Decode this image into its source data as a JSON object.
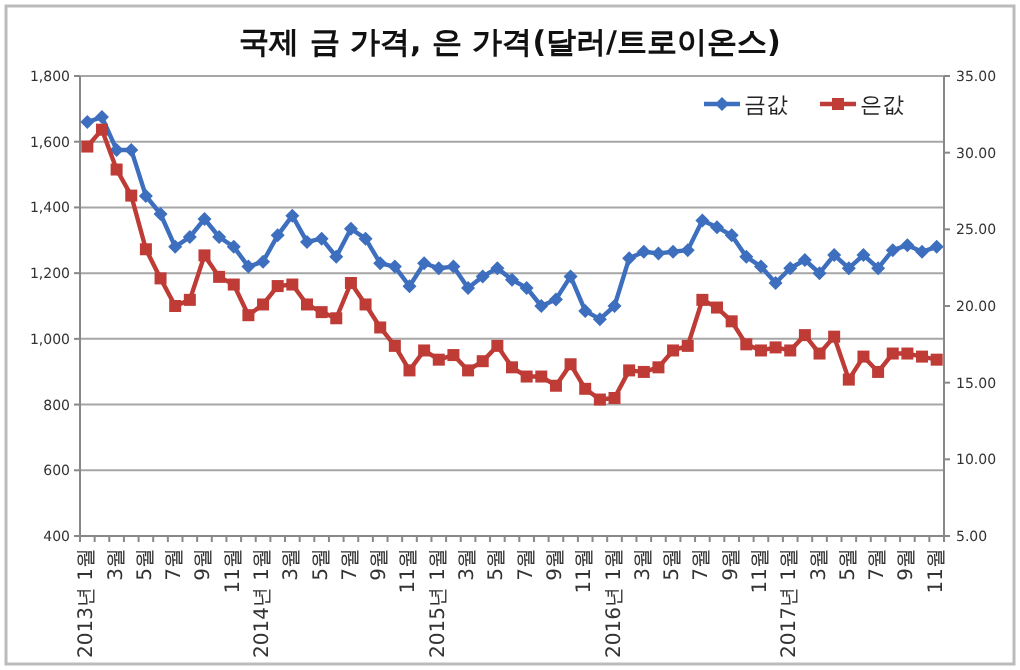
{
  "chart_data": {
    "type": "line",
    "title": "국제 금 가격, 은 가격(달러/트로이온스)",
    "categories": [
      "2013년 1월",
      null,
      "3월",
      null,
      "5월",
      null,
      "7월",
      null,
      "9월",
      null,
      "11월",
      null,
      "2014년 1월",
      null,
      "3월",
      null,
      "5월",
      null,
      "7월",
      null,
      "9월",
      null,
      "11월",
      null,
      "2015년 1월",
      null,
      "3월",
      null,
      "5월",
      null,
      "7월",
      null,
      "9월",
      null,
      "11월",
      null,
      "2016년 1월",
      null,
      "3월",
      null,
      "5월",
      null,
      "7월",
      null,
      "9월",
      null,
      "11월",
      null,
      "2017년 1월",
      null,
      "3월",
      null,
      "5월",
      null,
      "7월",
      null,
      "9월",
      null,
      "11월"
    ],
    "series": [
      {
        "name": "금값",
        "color": "#3d6fbe",
        "marker": "diamond",
        "values": [
          1660,
          1675,
          1575,
          1575,
          1435,
          1380,
          1280,
          1310,
          1365,
          1310,
          1280,
          1220,
          1235,
          1315,
          1375,
          1295,
          1305,
          1250,
          1335,
          1305,
          1230,
          1220,
          1160,
          1230,
          1215,
          1220,
          1155,
          1190,
          1215,
          1180,
          1155,
          1100,
          1120,
          1190,
          1085,
          1060,
          1100,
          1245,
          1265,
          1260,
          1265,
          1270,
          1360,
          1340,
          1315,
          1250,
          1220,
          1170,
          1215,
          1240,
          1200,
          1255,
          1215,
          1255,
          1215,
          1270,
          1285,
          1265,
          1280
        ]
      },
      {
        "name": "은값",
        "color": "#be3b36",
        "marker": "square",
        "axis": "y2",
        "values": [
          30.4,
          31.5,
          28.9,
          27.2,
          23.7,
          21.8,
          20.0,
          20.4,
          23.3,
          21.9,
          21.4,
          19.4,
          20.1,
          21.3,
          21.4,
          20.1,
          19.6,
          19.2,
          21.5,
          20.1,
          18.6,
          17.4,
          15.8,
          17.1,
          16.5,
          16.8,
          15.8,
          16.4,
          17.4,
          16.0,
          15.4,
          15.4,
          14.8,
          16.2,
          14.6,
          13.9,
          14.0,
          15.8,
          15.7,
          16.0,
          17.1,
          17.4,
          20.4,
          19.9,
          19.0,
          17.5,
          17.1,
          17.3,
          17.1,
          18.1,
          16.9,
          18.0,
          15.2,
          16.7,
          15.7,
          16.9,
          16.9,
          16.7,
          16.5
        ]
      }
    ],
    "ylim": [
      400,
      1800
    ],
    "yticks": [
      {
        "value": 400,
        "label": "400"
      },
      {
        "value": 600,
        "label": "600"
      },
      {
        "value": 800,
        "label": "800"
      },
      {
        "value": 1000,
        "label": "1,000"
      },
      {
        "value": 1200,
        "label": "1,200"
      },
      {
        "value": 1400,
        "label": "1,400"
      },
      {
        "value": 1600,
        "label": "1,600"
      },
      {
        "value": 1800,
        "label": "1,800"
      }
    ],
    "y2lim": [
      5,
      35
    ],
    "y2ticks": [
      {
        "value": 5,
        "label": "5.00"
      },
      {
        "value": 10,
        "label": "10.00"
      },
      {
        "value": 15,
        "label": "15.00"
      },
      {
        "value": 20,
        "label": "20.00"
      },
      {
        "value": 25,
        "label": "25.00"
      },
      {
        "value": 30,
        "label": "30.00"
      },
      {
        "value": 35,
        "label": "35.00"
      }
    ],
    "grid": "y",
    "legend": "top right",
    "line_style": "solid"
  }
}
